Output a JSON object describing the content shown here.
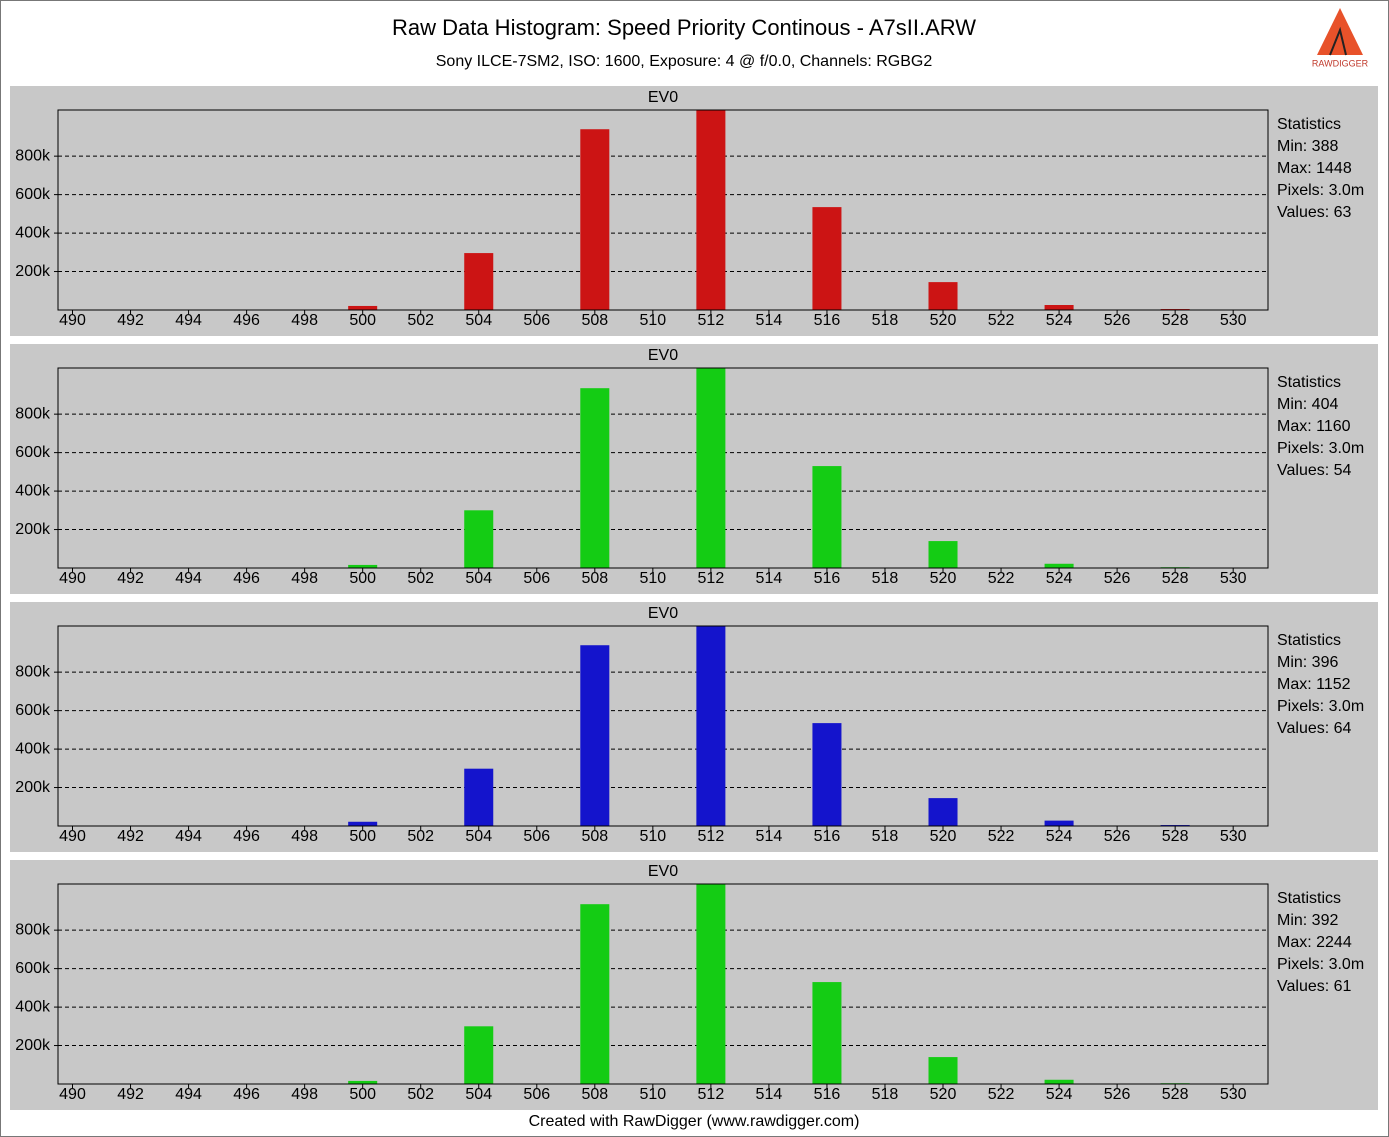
{
  "header": {
    "title": "Raw Data Histogram: Speed Priority Continous - A7sII.ARW",
    "subtitle": "Sony ILCE-7SM2, ISO: 1600, Exposure: 4 @ f/0.0, Channels: RGBG2",
    "logo": "RAWDIGGER"
  },
  "chart_data": [
    {
      "type": "bar",
      "title": "EV0",
      "color": "#cc1414",
      "x": [
        500,
        504,
        508,
        512,
        516,
        520,
        524,
        528
      ],
      "values": [
        21000,
        296000,
        940000,
        1040000,
        535000,
        145000,
        26000,
        5000
      ],
      "xlim": [
        489.5,
        531.2
      ],
      "xticks": [
        490,
        492,
        494,
        496,
        498,
        500,
        502,
        504,
        506,
        508,
        510,
        512,
        514,
        516,
        518,
        520,
        522,
        524,
        526,
        528,
        530
      ],
      "ylim": [
        0,
        1040000
      ],
      "yticks": [
        {
          "value": 200000,
          "label": "200k"
        },
        {
          "value": 400000,
          "label": "400k"
        },
        {
          "value": 600000,
          "label": "600k"
        },
        {
          "value": 800000,
          "label": "800k"
        }
      ],
      "grid": true,
      "stats": [
        "Statistics",
        "Min: 388",
        "Max: 1448",
        "Pixels: 3.0m",
        "Values: 63"
      ]
    },
    {
      "type": "bar",
      "title": "EV0",
      "color": "#14cc14",
      "x": [
        500,
        504,
        508,
        512,
        516,
        520,
        524,
        528
      ],
      "values": [
        16000,
        300000,
        935000,
        1040000,
        530000,
        140000,
        22000,
        4000
      ],
      "xlim": [
        489.5,
        531.2
      ],
      "xticks": [
        490,
        492,
        494,
        496,
        498,
        500,
        502,
        504,
        506,
        508,
        510,
        512,
        514,
        516,
        518,
        520,
        522,
        524,
        526,
        528,
        530
      ],
      "ylim": [
        0,
        1040000
      ],
      "yticks": [
        {
          "value": 200000,
          "label": "200k"
        },
        {
          "value": 400000,
          "label": "400k"
        },
        {
          "value": 600000,
          "label": "600k"
        },
        {
          "value": 800000,
          "label": "800k"
        }
      ],
      "grid": true,
      "stats": [
        "Statistics",
        "Min: 404",
        "Max: 1160",
        "Pixels: 3.0m",
        "Values: 54"
      ]
    },
    {
      "type": "bar",
      "title": "EV0",
      "color": "#1414cc",
      "x": [
        500,
        504,
        508,
        512,
        516,
        520,
        524,
        528
      ],
      "values": [
        22000,
        298000,
        940000,
        1040000,
        535000,
        145000,
        28000,
        5000
      ],
      "xlim": [
        489.5,
        531.2
      ],
      "xticks": [
        490,
        492,
        494,
        496,
        498,
        500,
        502,
        504,
        506,
        508,
        510,
        512,
        514,
        516,
        518,
        520,
        522,
        524,
        526,
        528,
        530
      ],
      "ylim": [
        0,
        1040000
      ],
      "yticks": [
        {
          "value": 200000,
          "label": "200k"
        },
        {
          "value": 400000,
          "label": "400k"
        },
        {
          "value": 600000,
          "label": "600k"
        },
        {
          "value": 800000,
          "label": "800k"
        }
      ],
      "grid": true,
      "stats": [
        "Statistics",
        "Min: 396",
        "Max: 1152",
        "Pixels: 3.0m",
        "Values: 64"
      ]
    },
    {
      "type": "bar",
      "title": "EV0",
      "color": "#14cc14",
      "x": [
        500,
        504,
        508,
        512,
        516,
        520,
        524,
        528
      ],
      "values": [
        16000,
        300000,
        935000,
        1040000,
        530000,
        140000,
        22000,
        4000
      ],
      "xlim": [
        489.5,
        531.2
      ],
      "xticks": [
        490,
        492,
        494,
        496,
        498,
        500,
        502,
        504,
        506,
        508,
        510,
        512,
        514,
        516,
        518,
        520,
        522,
        524,
        526,
        528,
        530
      ],
      "ylim": [
        0,
        1040000
      ],
      "yticks": [
        {
          "value": 200000,
          "label": "200k"
        },
        {
          "value": 400000,
          "label": "400k"
        },
        {
          "value": 600000,
          "label": "600k"
        },
        {
          "value": 800000,
          "label": "800k"
        }
      ],
      "grid": true,
      "stats": [
        "Statistics",
        "Min: 392",
        "Max: 2244",
        "Pixels: 3.0m",
        "Values: 61"
      ]
    }
  ],
  "footer": "Created with RawDigger (www.rawdigger.com)"
}
